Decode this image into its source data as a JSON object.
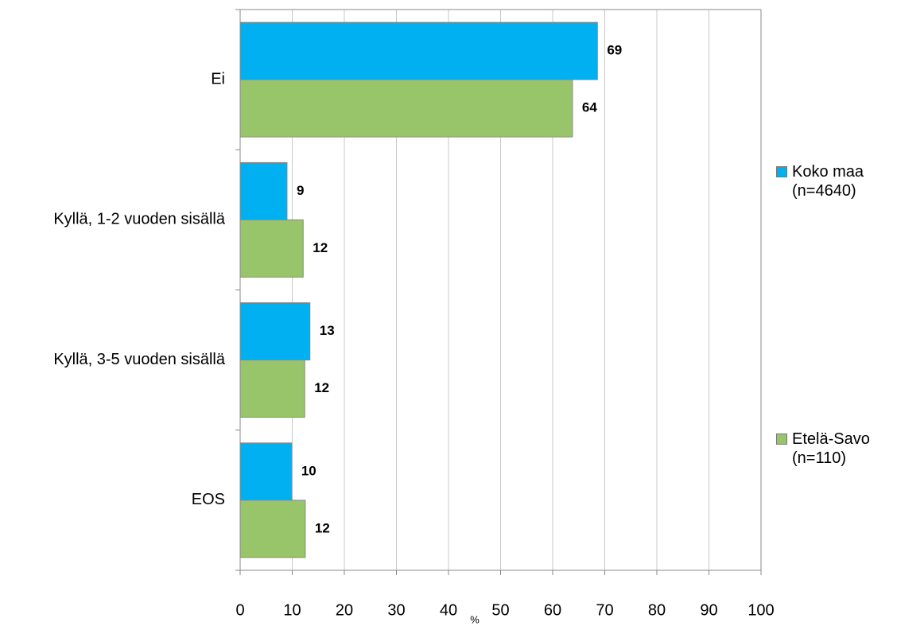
{
  "chart_data": {
    "type": "bar",
    "orientation": "horizontal",
    "categories": [
      "Ei",
      "Kyllä, 1-2 vuoden sisällä",
      "Kyllä, 3-5 vuoden sisällä",
      "EOS"
    ],
    "series": [
      {
        "name": "Koko maa (n=4640)",
        "color": "#00b0f0",
        "values": [
          68.6,
          9,
          13.4,
          9.9
        ],
        "value_labels": [
          "69",
          "9",
          "13",
          "10"
        ]
      },
      {
        "name": "Etelä-Savo (n=110)",
        "color": "#98c46a",
        "values": [
          63.8,
          12.1,
          12.4,
          12.5
        ],
        "value_labels": [
          "64",
          "12",
          "12",
          "12"
        ]
      }
    ],
    "x_label": "%",
    "xlim": [
      0,
      100
    ],
    "xticks": [
      0,
      10,
      20,
      30,
      40,
      50,
      60,
      70,
      80,
      90,
      100
    ],
    "grid": true,
    "legend": "right"
  }
}
